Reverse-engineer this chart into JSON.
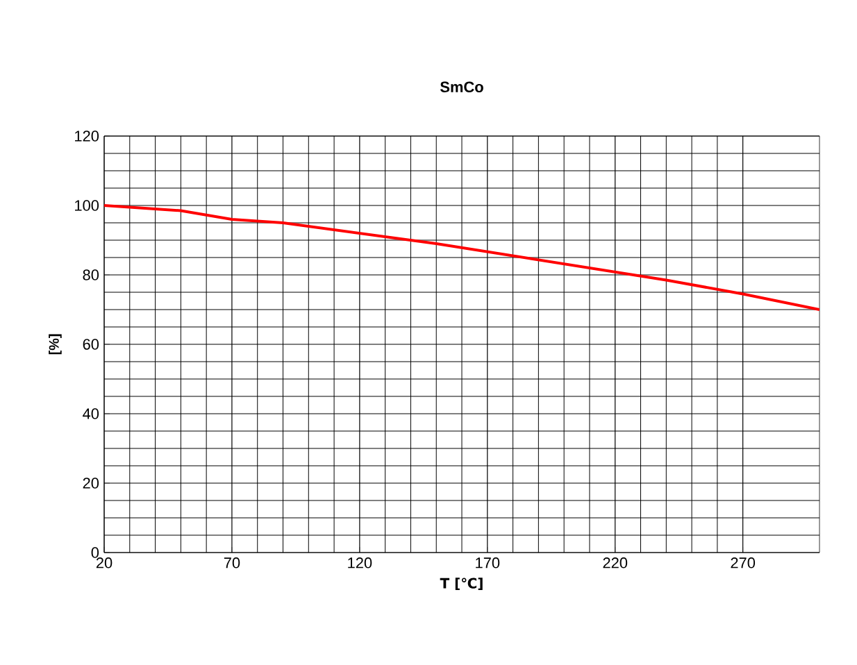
{
  "chart_data": {
    "type": "line",
    "title": "SmCo",
    "xlabel": "T [℃]",
    "ylabel": "[%]",
    "x": [
      20,
      50,
      70,
      90,
      120,
      150,
      180,
      210,
      240,
      270,
      300
    ],
    "series": [
      {
        "color": "#ff0000",
        "values": [
          100,
          98.5,
          96,
          95,
          92,
          89,
          85.5,
          82,
          78.5,
          74.5,
          70
        ]
      }
    ],
    "xlim": [
      20,
      300
    ],
    "ylim": [
      0,
      120
    ],
    "xticks": [
      20,
      70,
      120,
      170,
      220,
      270
    ],
    "yticks": [
      0,
      20,
      40,
      60,
      80,
      100,
      120
    ],
    "grid": true,
    "marker": "none",
    "line_style": "solid"
  }
}
